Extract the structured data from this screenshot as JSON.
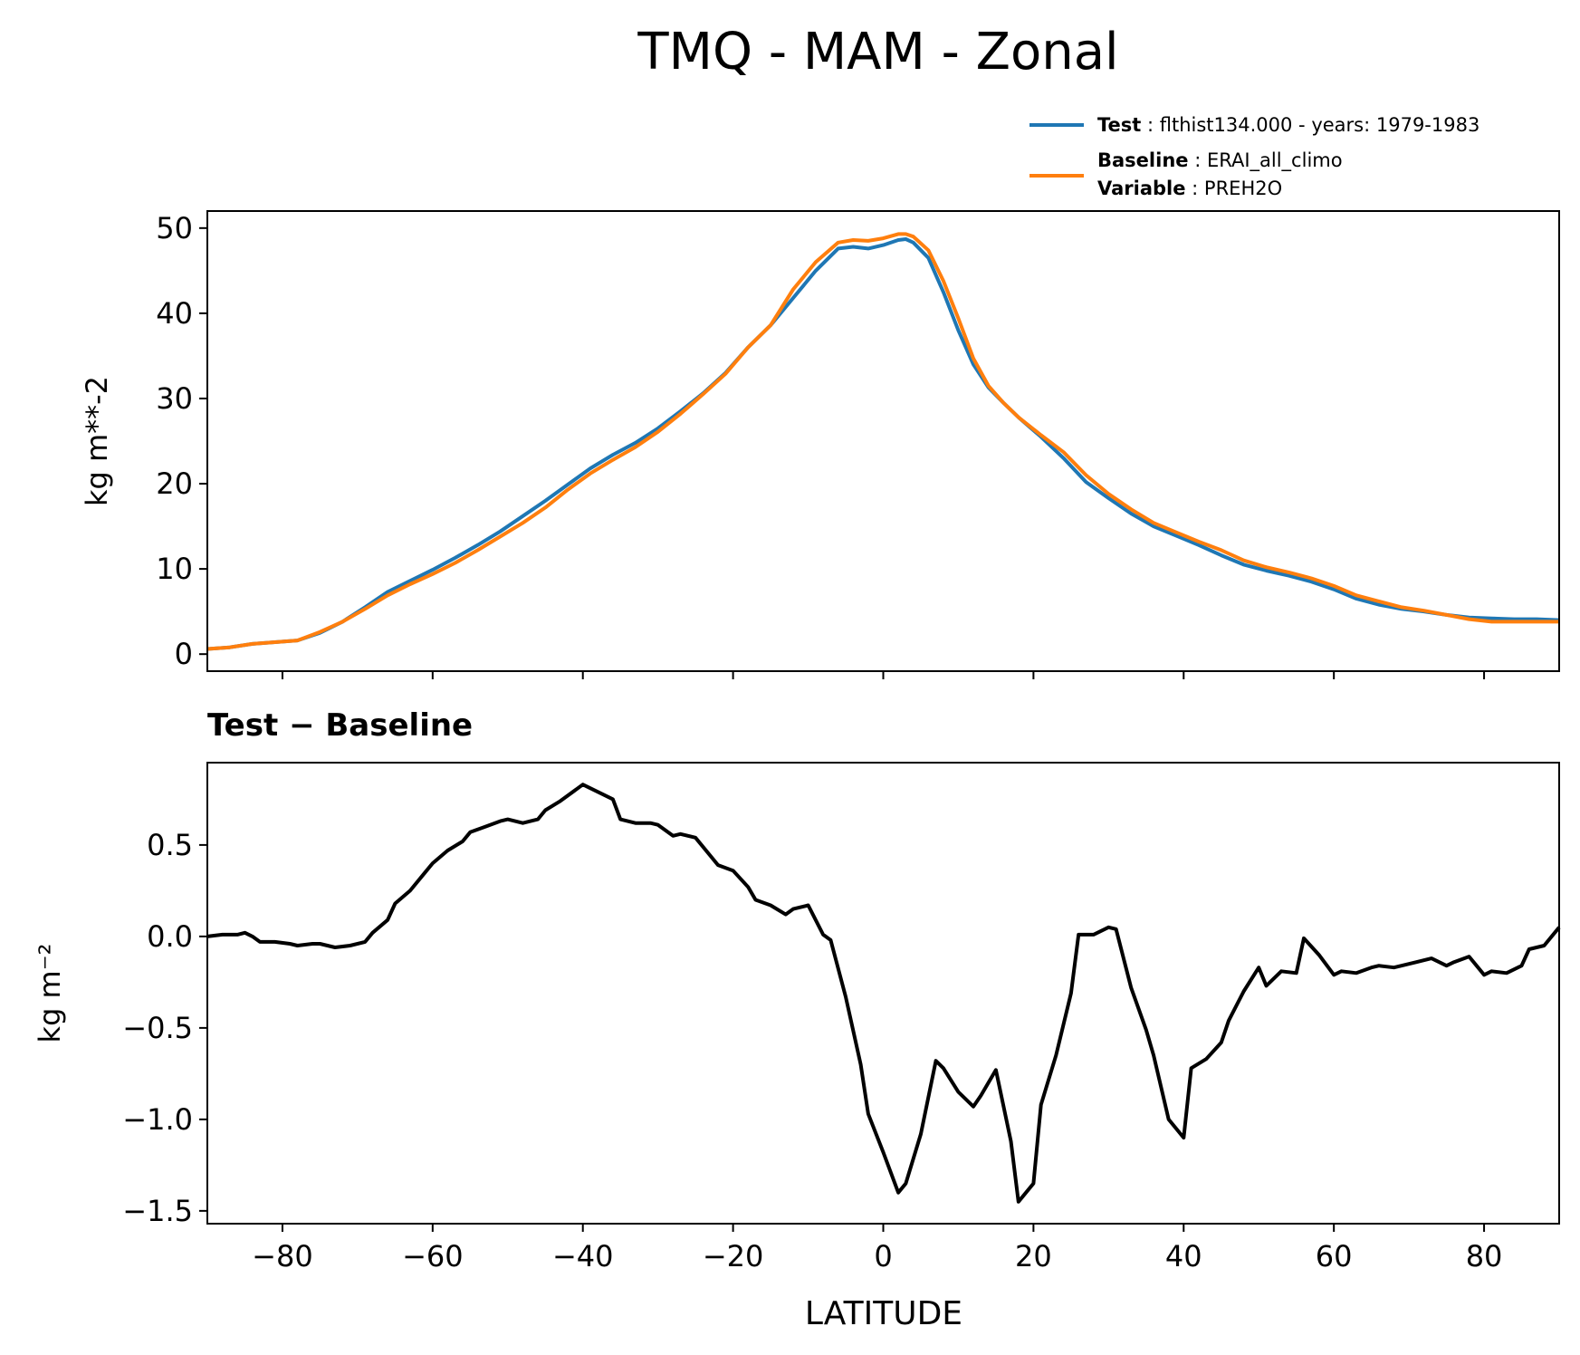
{
  "title": "TMQ - MAM - Zonal",
  "legend": {
    "test_label": "Test",
    "test_value": "flthist134.000 - years: 1979-1983",
    "baseline_label": "Baseline",
    "baseline_value": "ERAI_all_climo",
    "variable_label": "Variable",
    "variable_value": "PREH2O"
  },
  "colors": {
    "test": "#1f77b4",
    "baseline": "#ff7f0e",
    "diff": "#000000"
  },
  "chart_data": [
    {
      "type": "line",
      "title": "",
      "xlabel": "",
      "ylabel": "kg m**-2",
      "xlim": [
        -90,
        90
      ],
      "ylim": [
        -2,
        52
      ],
      "x_ticks": [
        -80,
        -60,
        -40,
        -20,
        0,
        20,
        40,
        60,
        80
      ],
      "y_ticks": [
        0,
        10,
        20,
        30,
        40,
        50
      ],
      "y_tick_labels": [
        "0",
        "10",
        "20",
        "30",
        "40",
        "50"
      ],
      "legend_position": "above-right",
      "x": [
        -90,
        -87,
        -84,
        -81,
        -78,
        -75,
        -72,
        -69,
        -66,
        -63,
        -60,
        -57,
        -54,
        -51,
        -48,
        -45,
        -42,
        -39,
        -36,
        -33,
        -30,
        -27,
        -24,
        -21,
        -18,
        -15,
        -12,
        -9,
        -6,
        -4,
        -2,
        0,
        2,
        3,
        4,
        6,
        8,
        10,
        12,
        14,
        16,
        18,
        21,
        24,
        27,
        30,
        33,
        36,
        39,
        42,
        45,
        48,
        51,
        54,
        57,
        60,
        63,
        66,
        69,
        72,
        75,
        78,
        81,
        84,
        87,
        90
      ],
      "series": [
        {
          "name": "Test",
          "values": [
            0.6,
            0.8,
            1.2,
            1.4,
            1.6,
            2.5,
            3.8,
            5.5,
            7.3,
            8.6,
            9.9,
            11.3,
            12.8,
            14.4,
            16.2,
            18.0,
            19.9,
            21.8,
            23.4,
            24.8,
            26.5,
            28.5,
            30.6,
            33.0,
            36.0,
            38.6,
            41.8,
            45.0,
            47.6,
            47.8,
            47.6,
            48.0,
            48.6,
            48.7,
            48.3,
            46.5,
            42.5,
            38.0,
            34.0,
            31.3,
            29.5,
            27.8,
            25.5,
            23.0,
            20.2,
            18.3,
            16.5,
            15.0,
            13.9,
            12.8,
            11.6,
            10.5,
            9.8,
            9.2,
            8.5,
            7.6,
            6.5,
            5.8,
            5.3,
            5.0,
            4.6,
            4.3,
            4.2,
            4.1,
            4.1,
            4.0
          ]
        },
        {
          "name": "Baseline",
          "values": [
            0.6,
            0.8,
            1.2,
            1.4,
            1.6,
            2.6,
            3.8,
            5.3,
            6.9,
            8.2,
            9.4,
            10.7,
            12.2,
            13.8,
            15.4,
            17.2,
            19.3,
            21.2,
            22.8,
            24.3,
            26.1,
            28.2,
            30.5,
            32.9,
            36.0,
            38.6,
            42.8,
            46.0,
            48.3,
            48.6,
            48.5,
            48.8,
            49.3,
            49.3,
            49.0,
            47.4,
            43.8,
            39.4,
            34.7,
            31.5,
            29.5,
            27.8,
            25.7,
            23.7,
            21.0,
            18.8,
            17.0,
            15.4,
            14.3,
            13.2,
            12.2,
            11.0,
            10.2,
            9.6,
            8.9,
            8.0,
            6.9,
            6.2,
            5.5,
            5.1,
            4.6,
            4.1,
            3.8,
            3.8,
            3.8,
            3.8
          ]
        }
      ]
    },
    {
      "type": "line",
      "title": "Test − Baseline",
      "xlabel": "LATITUDE",
      "ylabel": "kg m⁻²",
      "xlim": [
        -90,
        90
      ],
      "ylim": [
        -1.57,
        0.95
      ],
      "x_ticks": [
        -80,
        -60,
        -40,
        -20,
        0,
        20,
        40,
        60,
        80
      ],
      "x_tick_labels": [
        "−80",
        "−60",
        "−40",
        "−20",
        "0",
        "20",
        "40",
        "60",
        "80"
      ],
      "y_ticks": [
        0.5,
        0.0,
        -0.5,
        -1.0,
        -1.5
      ],
      "y_tick_labels": [
        "0.5",
        "0.0",
        "−0.5",
        "−1.0",
        "−1.5"
      ],
      "x": [
        -90,
        -88,
        -86,
        -85,
        -84,
        -83,
        -81,
        -79,
        -78,
        -76,
        -75,
        -73,
        -71,
        -69,
        -68,
        -66,
        -65,
        -63,
        -61,
        -60,
        -58,
        -56,
        -55,
        -53,
        -51,
        -50,
        -48,
        -46,
        -45,
        -43,
        -41,
        -40,
        -38,
        -36,
        -35,
        -33,
        -31,
        -30,
        -28,
        -27,
        -25,
        -23,
        -22,
        -20,
        -18,
        -17,
        -15,
        -13,
        -12,
        -10,
        -8,
        -7,
        -5,
        -3,
        -2,
        0,
        2,
        3,
        5,
        7,
        8,
        10,
        12,
        13,
        15,
        17,
        18,
        20,
        21,
        23,
        25,
        26,
        28,
        30,
        31,
        33,
        35,
        36,
        38,
        40,
        41,
        43,
        45,
        46,
        48,
        50,
        51,
        53,
        55,
        56,
        58,
        60,
        61,
        63,
        65,
        66,
        68,
        70,
        71,
        73,
        75,
        76,
        78,
        80,
        81,
        83,
        85,
        86,
        88,
        90
      ],
      "series": [
        {
          "name": "Test − Baseline",
          "values": [
            0.0,
            0.01,
            0.01,
            0.02,
            0.0,
            -0.03,
            -0.03,
            -0.04,
            -0.05,
            -0.04,
            -0.04,
            -0.06,
            -0.05,
            -0.03,
            0.02,
            0.09,
            0.18,
            0.25,
            0.35,
            0.4,
            0.47,
            0.52,
            0.57,
            0.6,
            0.63,
            0.64,
            0.62,
            0.64,
            0.69,
            0.74,
            0.8,
            0.83,
            0.79,
            0.75,
            0.64,
            0.62,
            0.62,
            0.61,
            0.55,
            0.56,
            0.54,
            0.44,
            0.39,
            0.36,
            0.27,
            0.2,
            0.17,
            0.12,
            0.15,
            0.17,
            0.01,
            -0.02,
            -0.33,
            -0.7,
            -0.97,
            -1.18,
            -1.4,
            -1.35,
            -1.08,
            -0.68,
            -0.72,
            -0.85,
            -0.93,
            -0.87,
            -0.73,
            -1.12,
            -1.45,
            -1.35,
            -0.92,
            -0.65,
            -0.31,
            0.01,
            0.01,
            0.05,
            0.04,
            -0.28,
            -0.51,
            -0.65,
            -1.0,
            -1.1,
            -0.72,
            -0.67,
            -0.58,
            -0.46,
            -0.3,
            -0.17,
            -0.27,
            -0.19,
            -0.2,
            -0.01,
            -0.1,
            -0.21,
            -0.19,
            -0.2,
            -0.17,
            -0.16,
            -0.17,
            -0.15,
            -0.14,
            -0.12,
            -0.16,
            -0.14,
            -0.11,
            -0.21,
            -0.19,
            -0.2,
            -0.16,
            -0.07,
            -0.05,
            0.05
          ]
        }
      ]
    }
  ]
}
